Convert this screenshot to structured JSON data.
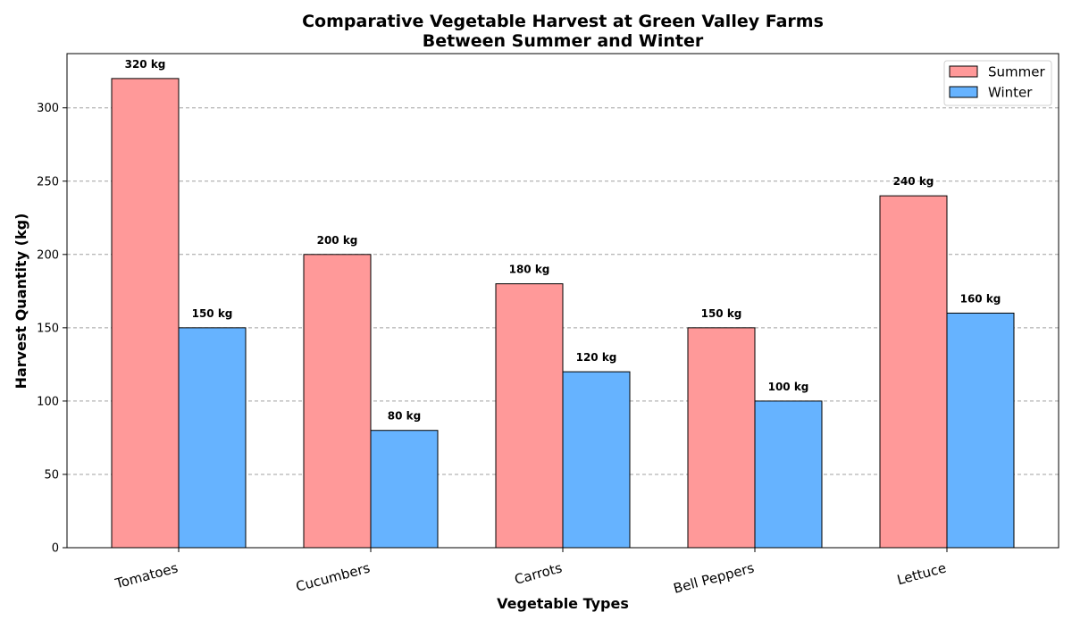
{
  "chart_data": {
    "type": "bar",
    "title": "Comparative Vegetable Harvest at Green Valley Farms",
    "subtitle": "Between Summer and Winter",
    "xlabel": "Vegetable Types",
    "ylabel": "Harvest Quantity (kg)",
    "categories": [
      "Tomatoes",
      "Cucumbers",
      "Carrots",
      "Bell Peppers",
      "Lettuce"
    ],
    "series": [
      {
        "name": "Summer",
        "color": "#ff9999",
        "values": [
          320,
          200,
          180,
          150,
          240
        ],
        "labels": [
          "320 kg",
          "200 kg",
          "180 kg",
          "150 kg",
          "240 kg"
        ]
      },
      {
        "name": "Winter",
        "color": "#66b3ff",
        "values": [
          150,
          80,
          120,
          100,
          160
        ],
        "labels": [
          "150 kg",
          "80 kg",
          "120 kg",
          "100 kg",
          "160 kg"
        ]
      }
    ],
    "ylim": [
      0,
      337
    ],
    "yticks": [
      0,
      50,
      100,
      150,
      200,
      250,
      300
    ],
    "grid": "y-dashed",
    "legend_position": "top-right"
  }
}
